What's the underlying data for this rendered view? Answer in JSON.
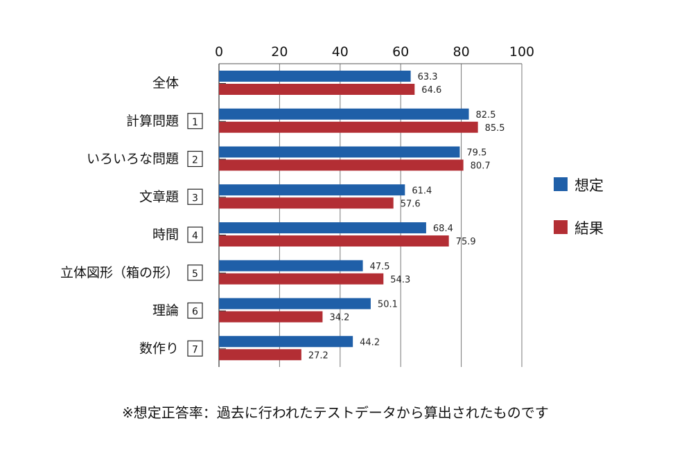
{
  "chart_data": {
    "type": "bar",
    "orientation": "horizontal",
    "categories": [
      "全体",
      "計算問題",
      "いろいろな問題",
      "文章題",
      "時間",
      "立体図形（箱の形）",
      "理論",
      "数作り"
    ],
    "category_numbers": [
      "",
      "1",
      "2",
      "3",
      "4",
      "5",
      "6",
      "7"
    ],
    "series": [
      {
        "name": "想定",
        "color": "#1f5fa8",
        "values": [
          63.3,
          82.5,
          79.5,
          61.4,
          68.4,
          47.5,
          50.1,
          44.2
        ]
      },
      {
        "name": "結果",
        "color": "#b32e34",
        "values": [
          64.6,
          85.5,
          80.7,
          57.6,
          75.9,
          54.3,
          34.2,
          27.2
        ]
      }
    ],
    "xlim": [
      0,
      100
    ],
    "xticks": [
      "0",
      "20",
      "40",
      "60",
      "80",
      "100"
    ],
    "grid": true,
    "legend_position": "right"
  },
  "note": "※想定正答率：過去に行われたテストデータから算出されたものです"
}
